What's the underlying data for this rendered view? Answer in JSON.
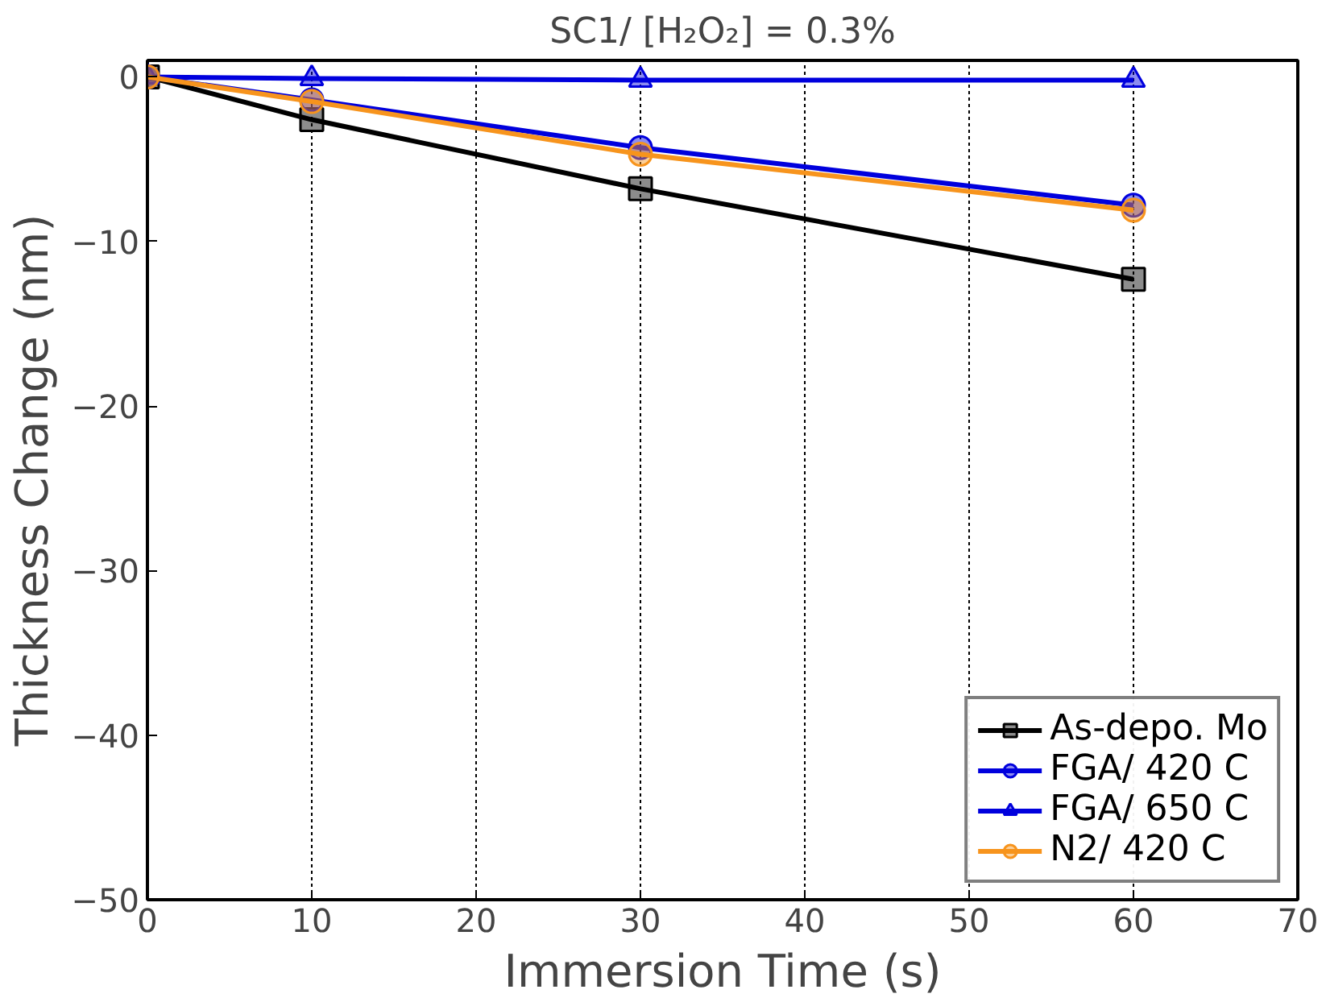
{
  "chart_data": {
    "type": "line",
    "title": "SC1/ [H₂O₂] = 0.3%",
    "xlabel": "Immersion Time (s)",
    "ylabel": "Thickness Change (nm)",
    "x": [
      0,
      10,
      30,
      60
    ],
    "series": [
      {
        "name": "As-depo. Mo",
        "color": "#000000",
        "marker": "square",
        "values": [
          0,
          -2.6,
          -6.8,
          -12.3
        ]
      },
      {
        "name": "FGA/ 420 C",
        "color": "#0000dd",
        "marker": "circle",
        "values": [
          0,
          -1.4,
          -4.3,
          -7.8
        ]
      },
      {
        "name": "FGA/ 650 C",
        "color": "#0000dd",
        "marker": "triangle",
        "values": [
          0,
          -0.1,
          -0.2,
          -0.2
        ]
      },
      {
        "name": "N2/ 420 C",
        "color": "#f7941d",
        "marker": "circle",
        "values": [
          0,
          -1.5,
          -4.7,
          -8.1
        ]
      }
    ],
    "xlim": [
      0,
      70
    ],
    "xticks": [
      0,
      10,
      20,
      30,
      40,
      50,
      60,
      70
    ],
    "ylim": [
      -50,
      1
    ],
    "yticks": [
      0,
      -10,
      -20,
      -30,
      -40,
      -50
    ],
    "grid": "x",
    "legend": "bottom right",
    "line_style": "solid"
  }
}
